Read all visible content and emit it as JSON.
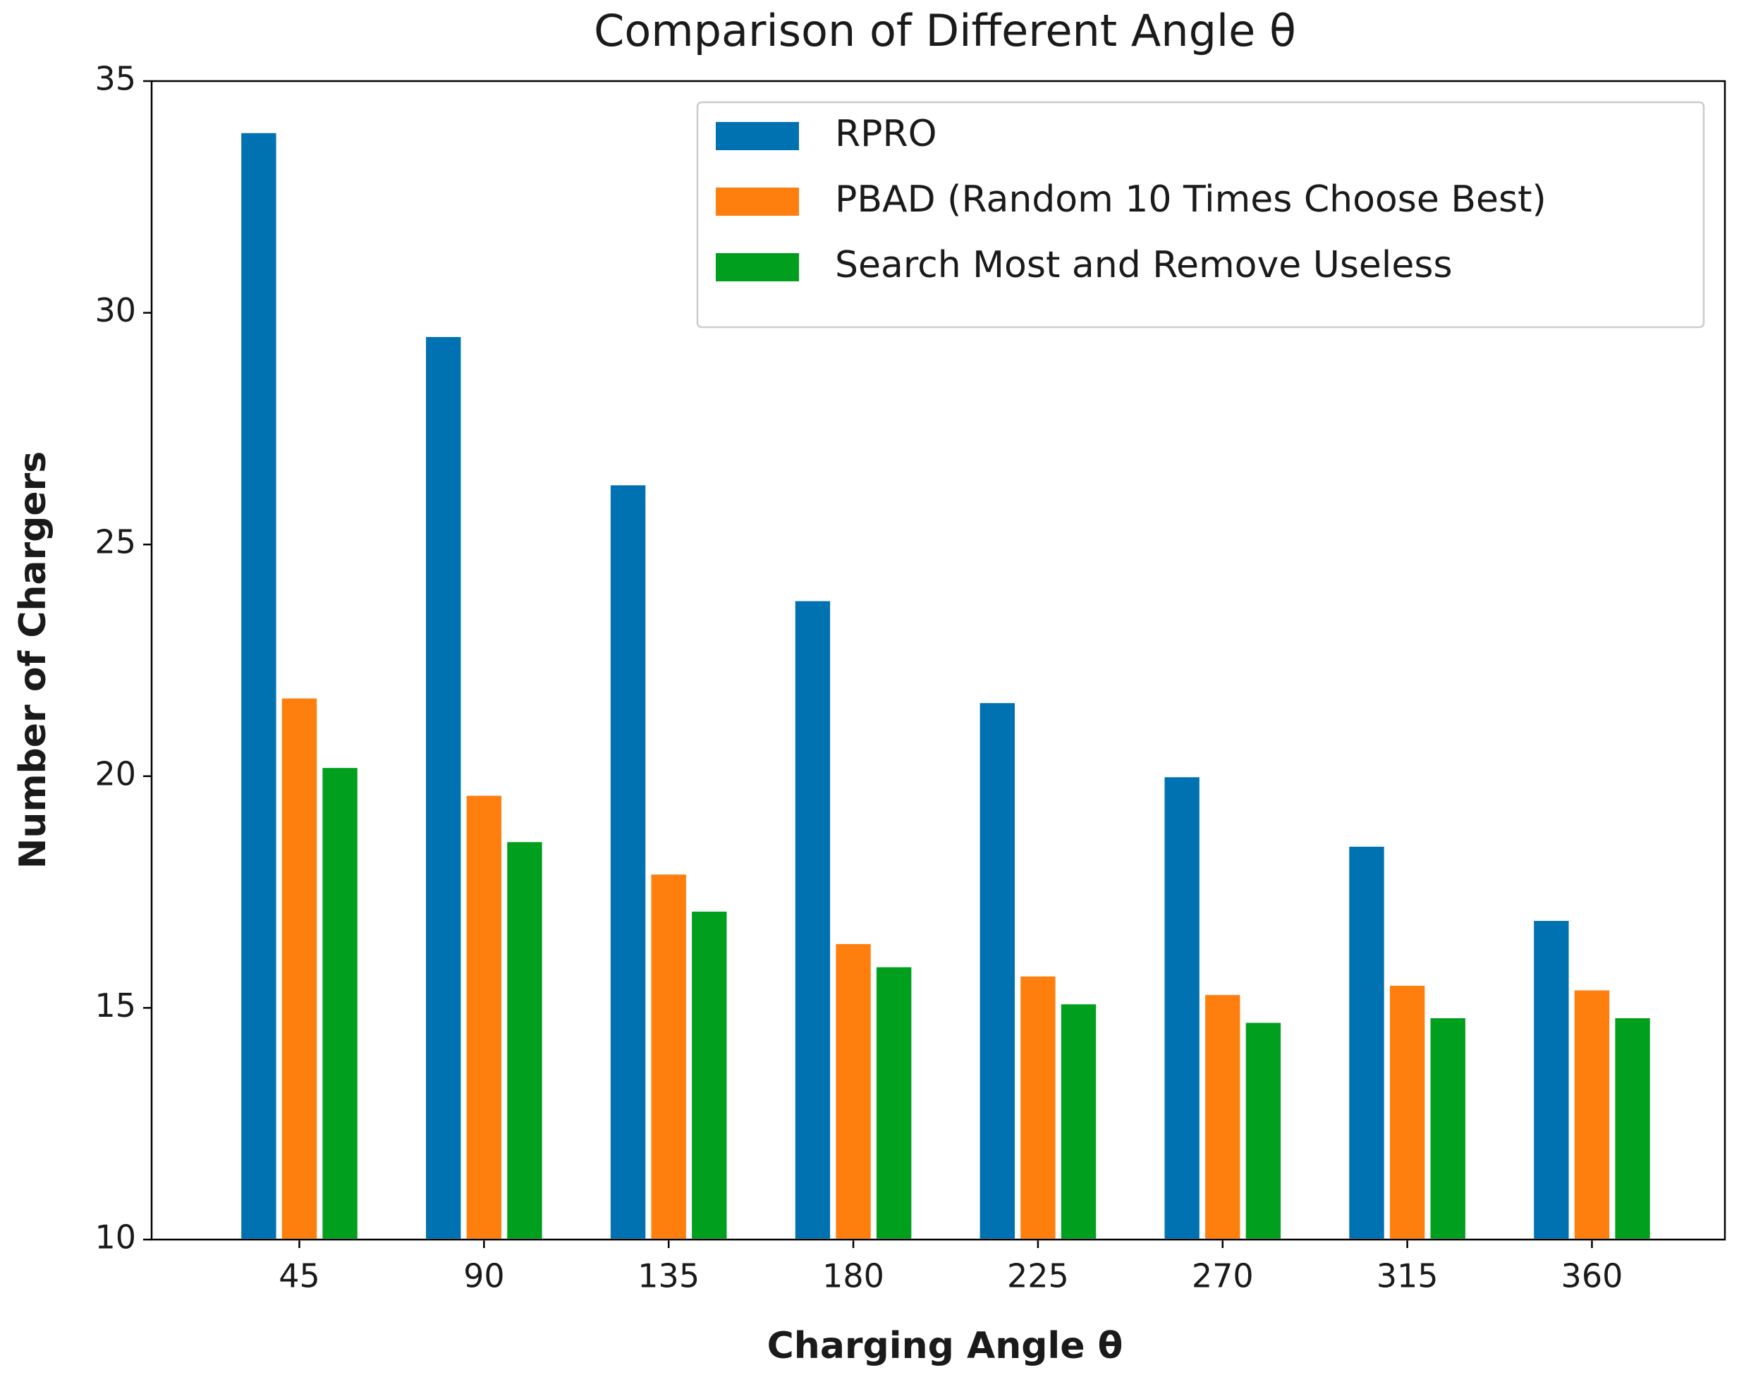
{
  "chart_data": {
    "type": "bar",
    "title": "Comparison of Different Angle θ",
    "x_label": "Charging Angle θ",
    "y_label": "Number of Chargers",
    "categories": [
      "45",
      "90",
      "135",
      "180",
      "225",
      "270",
      "315",
      "360"
    ],
    "series": [
      {
        "name": "RPRO",
        "color": "#0072b2",
        "values": [
          33.9,
          29.5,
          26.3,
          23.8,
          21.6,
          20.0,
          18.5,
          16.9
        ]
      },
      {
        "name": "PBAD (Random 10 Times Choose Best)",
        "color": "#ff7f0e",
        "values": [
          21.7,
          19.6,
          17.9,
          16.4,
          15.7,
          15.3,
          15.5,
          15.4
        ]
      },
      {
        "name": "Search Most and Remove Useless",
        "color": "#00a01e",
        "values": [
          20.2,
          18.6,
          17.1,
          15.9,
          15.1,
          14.7,
          14.8,
          14.8
        ]
      }
    ],
    "ylim": [
      10,
      35
    ],
    "yticks": [
      10,
      15,
      20,
      25,
      30,
      35
    ],
    "legend": "upper right"
  }
}
